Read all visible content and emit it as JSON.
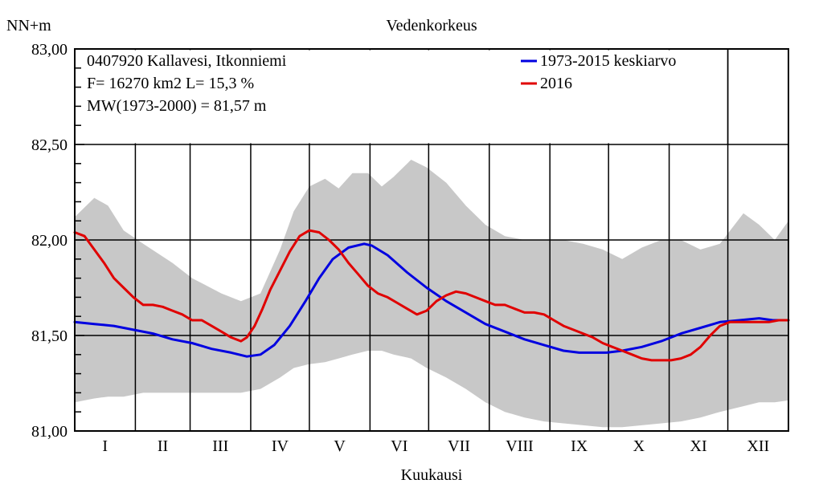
{
  "chart_data": {
    "type": "line",
    "title": "Vedenkorkeus",
    "ylabel": "NN+m",
    "xlabel": "Kuukausi",
    "ylim": [
      81.0,
      83.0
    ],
    "xlim": [
      0,
      365
    ],
    "yticks": [
      {
        "value": 83.0,
        "label": "83,00"
      },
      {
        "value": 82.5,
        "label": "82,50"
      },
      {
        "value": 82.0,
        "label": "82,00"
      },
      {
        "value": 81.5,
        "label": "81,50"
      },
      {
        "value": 81.0,
        "label": "81,00"
      }
    ],
    "months": [
      "I",
      "II",
      "III",
      "IV",
      "V",
      "VI",
      "VII",
      "VIII",
      "IX",
      "X",
      "XI",
      "XII"
    ],
    "month_starts": [
      0,
      31,
      59,
      90,
      120,
      151,
      181,
      212,
      243,
      273,
      304,
      334,
      365
    ],
    "grid": true,
    "info_lines": [
      "0407920 Kallavesi, Itkonniemi",
      "F=  16270 km2 L=  15,3 %",
      "MW(1973-2000) = 81,57 m"
    ],
    "legend_position": "top-right",
    "band": {
      "color": "#c8c8c8",
      "x": [
        0,
        10,
        17,
        25,
        35,
        50,
        60,
        75,
        85,
        95,
        105,
        112,
        120,
        128,
        135,
        142,
        150,
        157,
        163,
        172,
        180,
        190,
        200,
        210,
        220,
        230,
        240,
        250,
        260,
        270,
        280,
        290,
        300,
        310,
        320,
        330,
        342,
        350,
        358,
        365
      ],
      "upper": [
        82.12,
        82.22,
        82.18,
        82.05,
        81.98,
        81.88,
        81.8,
        81.72,
        81.68,
        81.72,
        81.95,
        82.15,
        82.28,
        82.32,
        82.27,
        82.35,
        82.35,
        82.28,
        82.33,
        82.42,
        82.38,
        82.3,
        82.18,
        82.08,
        82.02,
        82.0,
        82.0,
        82.0,
        81.98,
        81.95,
        81.9,
        81.96,
        82.0,
        82.0,
        81.95,
        81.98,
        82.14,
        82.08,
        82.0,
        82.1
      ],
      "lower": [
        81.15,
        81.17,
        81.18,
        81.18,
        81.2,
        81.2,
        81.2,
        81.2,
        81.2,
        81.22,
        81.28,
        81.33,
        81.35,
        81.36,
        81.38,
        81.4,
        81.42,
        81.42,
        81.4,
        81.38,
        81.33,
        81.28,
        81.22,
        81.15,
        81.1,
        81.07,
        81.05,
        81.04,
        81.03,
        81.02,
        81.02,
        81.03,
        81.04,
        81.05,
        81.07,
        81.1,
        81.13,
        81.15,
        81.15,
        81.16
      ]
    },
    "series": [
      {
        "name": "1973-2015 keskiarvo",
        "color": "#0000e0",
        "x": [
          0,
          10,
          20,
          30,
          40,
          50,
          60,
          70,
          80,
          88,
          95,
          102,
          110,
          118,
          125,
          132,
          140,
          148,
          152,
          160,
          170,
          180,
          190,
          200,
          210,
          220,
          230,
          240,
          250,
          258,
          265,
          272,
          280,
          290,
          300,
          310,
          320,
          330,
          340,
          350,
          357,
          365
        ],
        "y": [
          81.57,
          81.56,
          81.55,
          81.53,
          81.51,
          81.48,
          81.46,
          81.43,
          81.41,
          81.39,
          81.4,
          81.45,
          81.55,
          81.68,
          81.8,
          81.9,
          81.96,
          81.98,
          81.97,
          81.92,
          81.83,
          81.75,
          81.68,
          81.62,
          81.56,
          81.52,
          81.48,
          81.45,
          81.42,
          81.41,
          81.41,
          81.41,
          81.42,
          81.44,
          81.47,
          81.51,
          81.54,
          81.57,
          81.58,
          81.59,
          81.58,
          81.58
        ]
      },
      {
        "name": "2016",
        "color": "#e00000",
        "x": [
          0,
          5,
          10,
          15,
          20,
          25,
          30,
          35,
          40,
          45,
          50,
          55,
          60,
          65,
          70,
          75,
          80,
          85,
          88,
          92,
          96,
          100,
          105,
          110,
          115,
          120,
          125,
          130,
          135,
          140,
          145,
          150,
          155,
          160,
          165,
          170,
          175,
          180,
          185,
          190,
          195,
          200,
          205,
          210,
          215,
          220,
          225,
          230,
          235,
          240,
          245,
          250,
          255,
          260,
          265,
          270,
          275,
          280,
          285,
          290,
          295,
          300,
          305,
          310,
          315,
          320,
          325,
          330,
          335,
          340,
          345,
          350,
          355,
          360,
          365
        ],
        "y": [
          82.04,
          82.02,
          81.95,
          81.88,
          81.8,
          81.75,
          81.7,
          81.66,
          81.66,
          81.65,
          81.63,
          81.61,
          81.58,
          81.58,
          81.55,
          81.52,
          81.49,
          81.47,
          81.49,
          81.55,
          81.64,
          81.74,
          81.84,
          81.94,
          82.02,
          82.05,
          82.04,
          82.0,
          81.95,
          81.88,
          81.82,
          81.76,
          81.72,
          81.7,
          81.67,
          81.64,
          81.61,
          81.63,
          81.68,
          81.71,
          81.73,
          81.72,
          81.7,
          81.68,
          81.66,
          81.66,
          81.64,
          81.62,
          81.62,
          81.61,
          81.58,
          81.55,
          81.53,
          81.51,
          81.49,
          81.46,
          81.44,
          81.42,
          81.4,
          81.38,
          81.37,
          81.37,
          81.37,
          81.38,
          81.4,
          81.44,
          81.5,
          81.55,
          81.57,
          81.57,
          81.57,
          81.57,
          81.57,
          81.58,
          81.58
        ]
      }
    ]
  }
}
